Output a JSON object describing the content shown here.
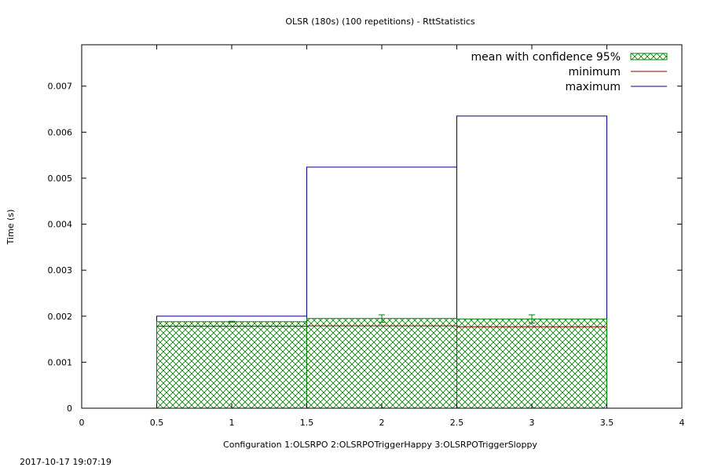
{
  "footer": {
    "timestamp": "2017-10-17 19:07:19"
  },
  "chart_data": {
    "type": "bar",
    "title": "OLSR (180s) (100 repetitions) - RttStatistics",
    "xlabel": "Configuration 1:OLSRPO  2:OLSRPOTriggerHappy  3:OLSRPOTriggerSloppy",
    "ylabel": "Time (s)",
    "xlim": [
      0,
      4
    ],
    "ylim": [
      0,
      0.0079
    ],
    "x_ticks": [
      "0",
      "0.5",
      "1",
      "1.5",
      "2",
      "2.5",
      "3",
      "3.5",
      "4"
    ],
    "y_ticks": [
      "0",
      "0.001",
      "0.002",
      "0.003",
      "0.004",
      "0.005",
      "0.006",
      "0.007"
    ],
    "legend_position": "top-right",
    "categories": [
      1,
      2,
      3
    ],
    "bar_width": 1,
    "series": [
      {
        "name": "mean with confidence 95%",
        "values": [
          0.00188,
          0.00195,
          0.00194
        ],
        "ci_low": [
          0.00187,
          0.00187,
          0.00185
        ],
        "ci_high": [
          0.00189,
          0.00203,
          0.00203
        ],
        "color": "#008000"
      },
      {
        "name": "minimum",
        "values": [
          0.00178,
          0.00179,
          0.00177
        ],
        "color": "#8b0000"
      },
      {
        "name": "maximum",
        "values": [
          0.002,
          0.00524,
          0.00635
        ],
        "color": "#000080"
      }
    ]
  }
}
